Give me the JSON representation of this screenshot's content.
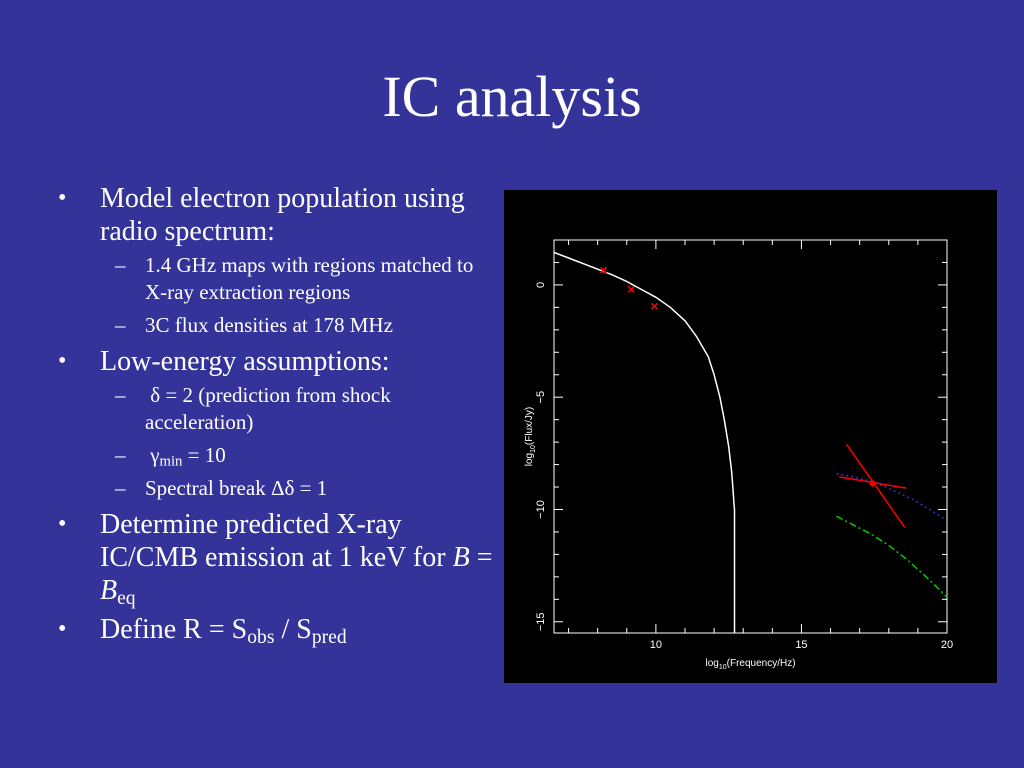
{
  "slide": {
    "title": "IC analysis",
    "bullets": [
      {
        "text": "Model electron population using radio spectrum:",
        "sub": [
          "1.4 GHz maps with regions matched to X-ray extraction regions",
          "3C flux densities at 178 MHz"
        ]
      },
      {
        "text": "Low-energy assumptions:",
        "sub": [
          {
            "sym": "δ",
            "rest": " = 2 (prediction from shock acceleration)"
          },
          {
            "sym": "γ",
            "subscript": "min",
            "rest": " = 10"
          },
          {
            "pre": "Spectral break ",
            "sym": "Δδ",
            "rest": " = 1"
          }
        ]
      },
      {
        "text": "Determine predicted X-ray IC/CMB emission at 1 keV for ",
        "var1": "B",
        "eq": " = ",
        "var2": "B",
        "subscript": "eq"
      },
      {
        "pre": "Define R = S",
        "sub1": "obs",
        "mid": " / S",
        "sub2": "pred"
      }
    ]
  },
  "chart_data": {
    "type": "line",
    "xlabel_pre": "log",
    "xlabel_sub": "10",
    "xlabel_post": "(Frequency/Hz)",
    "ylabel_pre": "log",
    "ylabel_sub": "10",
    "ylabel_post": "(Flux/Jy)",
    "xlim": [
      6.5,
      20
    ],
    "ylim": [
      -15.5,
      2
    ],
    "xticks": [
      10,
      15,
      20
    ],
    "yticks": [
      0,
      -5,
      -10,
      -15
    ],
    "xtick_labels": [
      "10",
      "15",
      "20"
    ],
    "ytick_labels": [
      "0",
      "−5",
      "−10",
      "−15"
    ],
    "series": [
      {
        "style": "solid",
        "color": "#ffffff",
        "x": [
          6.5,
          7.0,
          7.5,
          8.0,
          8.5,
          9.0,
          9.5,
          10.0,
          10.5,
          11.0,
          11.4,
          11.8,
          12.0,
          12.2,
          12.35,
          12.5,
          12.6,
          12.65,
          12.68,
          12.7,
          12.7
        ],
        "y": [
          1.45,
          1.2,
          0.95,
          0.7,
          0.45,
          0.15,
          -0.2,
          -0.55,
          -1.0,
          -1.6,
          -2.3,
          -3.2,
          -4.0,
          -5.0,
          -6.0,
          -7.2,
          -8.3,
          -9.1,
          -9.7,
          -10.0,
          -15.5
        ]
      },
      {
        "style": "dotted",
        "color": "#3333cc",
        "x": [
          16.2,
          16.8,
          17.4,
          17.9,
          18.4,
          18.9,
          19.4,
          19.9
        ],
        "y": [
          -8.4,
          -8.55,
          -8.75,
          -9.0,
          -9.3,
          -9.6,
          -10.0,
          -10.4
        ]
      },
      {
        "style": "dashdot",
        "color": "#00cc00",
        "x": [
          16.2,
          16.8,
          17.4,
          18.0,
          18.6,
          19.2,
          19.6,
          20.0
        ],
        "y": [
          -10.3,
          -10.7,
          -11.1,
          -11.6,
          -12.2,
          -12.9,
          -13.4,
          -13.9
        ]
      }
    ],
    "points": [
      {
        "x": 8.2,
        "y": 0.65
      },
      {
        "x": 9.15,
        "y": -0.2
      },
      {
        "x": 9.95,
        "y": -0.95
      }
    ],
    "xray_point": {
      "x": 17.45,
      "y": -8.85,
      "x_range": [
        16.3,
        18.6
      ],
      "y_range": [
        -7.1,
        -10.8
      ]
    },
    "colors": {
      "background": "#000000",
      "axis": "#ffffff",
      "points": "#ff0000"
    },
    "grid": false
  }
}
